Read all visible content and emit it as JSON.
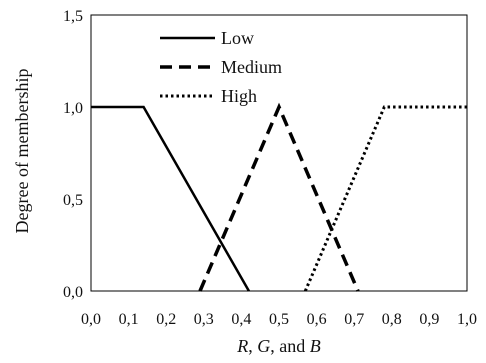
{
  "chart_data": {
    "type": "line",
    "title": "",
    "ylabel": "Degree of membership",
    "xlabel": {
      "v1": "R",
      "sep1": ", ",
      "v2": "G",
      "sep2": ", and ",
      "v3": "B"
    },
    "xlim": [
      0,
      1
    ],
    "ylim": [
      0,
      1.5
    ],
    "x_ticks": [
      "0,0",
      "0,1",
      "0,2",
      "0,3",
      "0,4",
      "0,5",
      "0,6",
      "0,7",
      "0,8",
      "0,9",
      "1,0"
    ],
    "y_ticks": [
      "0,0",
      "0,5",
      "1,0",
      "1,5"
    ],
    "grid": false,
    "legend_position": "top-left",
    "series": [
      {
        "name": "Low",
        "style": "solid",
        "points": [
          [
            0.0,
            1.0
          ],
          [
            0.14,
            1.0
          ],
          [
            0.42,
            0.0
          ]
        ]
      },
      {
        "name": "Medium",
        "style": "dashed",
        "points": [
          [
            0.29,
            0.0
          ],
          [
            0.5,
            1.0
          ],
          [
            0.71,
            0.0
          ]
        ]
      },
      {
        "name": "High",
        "style": "dotted",
        "points": [
          [
            0.57,
            0.0
          ],
          [
            0.78,
            1.0
          ],
          [
            1.0,
            1.0
          ]
        ]
      }
    ]
  }
}
